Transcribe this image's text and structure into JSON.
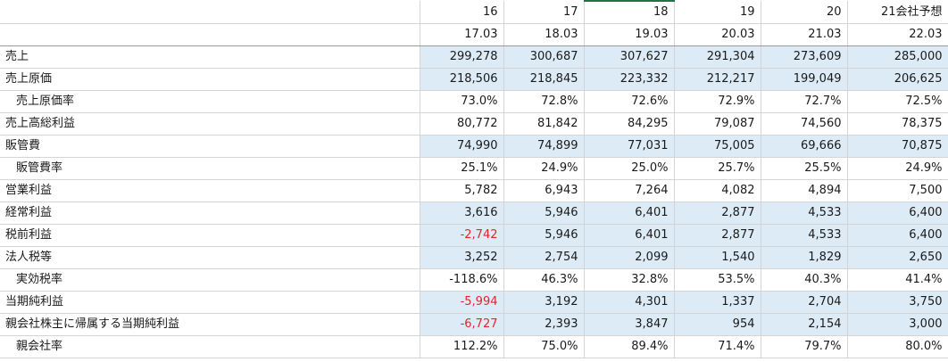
{
  "header": {
    "years": [
      "16",
      "17",
      "18",
      "19",
      "20",
      "21会社予想"
    ],
    "periods": [
      "17.03",
      "18.03",
      "19.03",
      "20.03",
      "21.03",
      "22.03"
    ]
  },
  "rows": [
    {
      "label": "売上",
      "indent": false,
      "highlight": true,
      "values": [
        "299,278",
        "300,687",
        "307,627",
        "291,304",
        "273,609",
        "285,000"
      ],
      "negative": [
        false,
        false,
        false,
        false,
        false,
        false
      ]
    },
    {
      "label": "売上原価",
      "indent": false,
      "highlight": true,
      "values": [
        "218,506",
        "218,845",
        "223,332",
        "212,217",
        "199,049",
        "206,625"
      ],
      "negative": [
        false,
        false,
        false,
        false,
        false,
        false
      ]
    },
    {
      "label": "売上原価率",
      "indent": true,
      "highlight": false,
      "values": [
        "73.0%",
        "72.8%",
        "72.6%",
        "72.9%",
        "72.7%",
        "72.5%"
      ],
      "negative": [
        false,
        false,
        false,
        false,
        false,
        false
      ]
    },
    {
      "label": "売上高総利益",
      "indent": false,
      "highlight": false,
      "values": [
        "80,772",
        "81,842",
        "84,295",
        "79,087",
        "74,560",
        "78,375"
      ],
      "negative": [
        false,
        false,
        false,
        false,
        false,
        false
      ]
    },
    {
      "label": "販管費",
      "indent": false,
      "highlight": true,
      "values": [
        "74,990",
        "74,899",
        "77,031",
        "75,005",
        "69,666",
        "70,875"
      ],
      "negative": [
        false,
        false,
        false,
        false,
        false,
        false
      ]
    },
    {
      "label": "販管費率",
      "indent": true,
      "highlight": false,
      "values": [
        "25.1%",
        "24.9%",
        "25.0%",
        "25.7%",
        "25.5%",
        "24.9%"
      ],
      "negative": [
        false,
        false,
        false,
        false,
        false,
        false
      ]
    },
    {
      "label": "営業利益",
      "indent": false,
      "highlight": false,
      "values": [
        "5,782",
        "6,943",
        "7,264",
        "4,082",
        "4,894",
        "7,500"
      ],
      "negative": [
        false,
        false,
        false,
        false,
        false,
        false
      ]
    },
    {
      "label": "経常利益",
      "indent": false,
      "highlight": true,
      "values": [
        "3,616",
        "5,946",
        "6,401",
        "2,877",
        "4,533",
        "6,400"
      ],
      "negative": [
        false,
        false,
        false,
        false,
        false,
        false
      ]
    },
    {
      "label": "税前利益",
      "indent": false,
      "highlight": true,
      "values": [
        "-2,742",
        "5,946",
        "6,401",
        "2,877",
        "4,533",
        "6,400"
      ],
      "negative": [
        true,
        false,
        false,
        false,
        false,
        false
      ]
    },
    {
      "label": "法人税等",
      "indent": false,
      "highlight": true,
      "values": [
        "3,252",
        "2,754",
        "2,099",
        "1,540",
        "1,829",
        "2,650"
      ],
      "negative": [
        false,
        false,
        false,
        false,
        false,
        false
      ]
    },
    {
      "label": "実効税率",
      "indent": true,
      "highlight": false,
      "values": [
        "-118.6%",
        "46.3%",
        "32.8%",
        "53.5%",
        "40.3%",
        "41.4%"
      ],
      "negative": [
        false,
        false,
        false,
        false,
        false,
        false
      ]
    },
    {
      "label": "当期純利益",
      "indent": false,
      "highlight": true,
      "values": [
        "-5,994",
        "3,192",
        "4,301",
        "1,337",
        "2,704",
        "3,750"
      ],
      "negative": [
        true,
        false,
        false,
        false,
        false,
        false
      ]
    },
    {
      "label": "親会社株主に帰属する当期純利益",
      "indent": false,
      "highlight": true,
      "values": [
        "-6,727",
        "2,393",
        "3,847",
        "954",
        "2,154",
        "3,000"
      ],
      "negative": [
        true,
        false,
        false,
        false,
        false,
        false
      ]
    },
    {
      "label": "親会社率",
      "indent": true,
      "highlight": false,
      "values": [
        "112.2%",
        "75.0%",
        "89.4%",
        "71.4%",
        "79.7%",
        "80.0%"
      ],
      "negative": [
        false,
        false,
        false,
        false,
        false,
        false
      ]
    }
  ],
  "colors": {
    "highlight_fill": "#dcebf6",
    "negative_text": "#e0262b",
    "selection_border": "#217346"
  }
}
